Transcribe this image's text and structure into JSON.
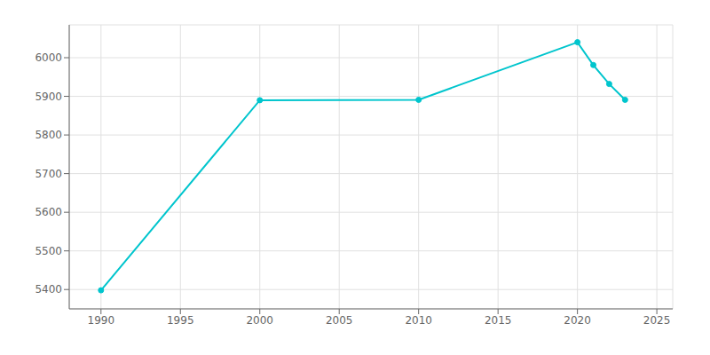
{
  "chart_data": {
    "type": "line",
    "x": [
      1990,
      2000,
      2010,
      2020,
      2021,
      2022,
      2023
    ],
    "values": [
      5398,
      5890,
      5891,
      6040,
      5981,
      5932,
      5891
    ],
    "color": "#00c5cd",
    "marker": "circle",
    "xlim": [
      1988,
      2026
    ],
    "ylim": [
      5350,
      6085
    ],
    "xticks": [
      1990,
      1995,
      2000,
      2005,
      2010,
      2015,
      2020,
      2025
    ],
    "yticks": [
      5400,
      5500,
      5600,
      5700,
      5800,
      5900,
      6000
    ],
    "grid": true
  }
}
